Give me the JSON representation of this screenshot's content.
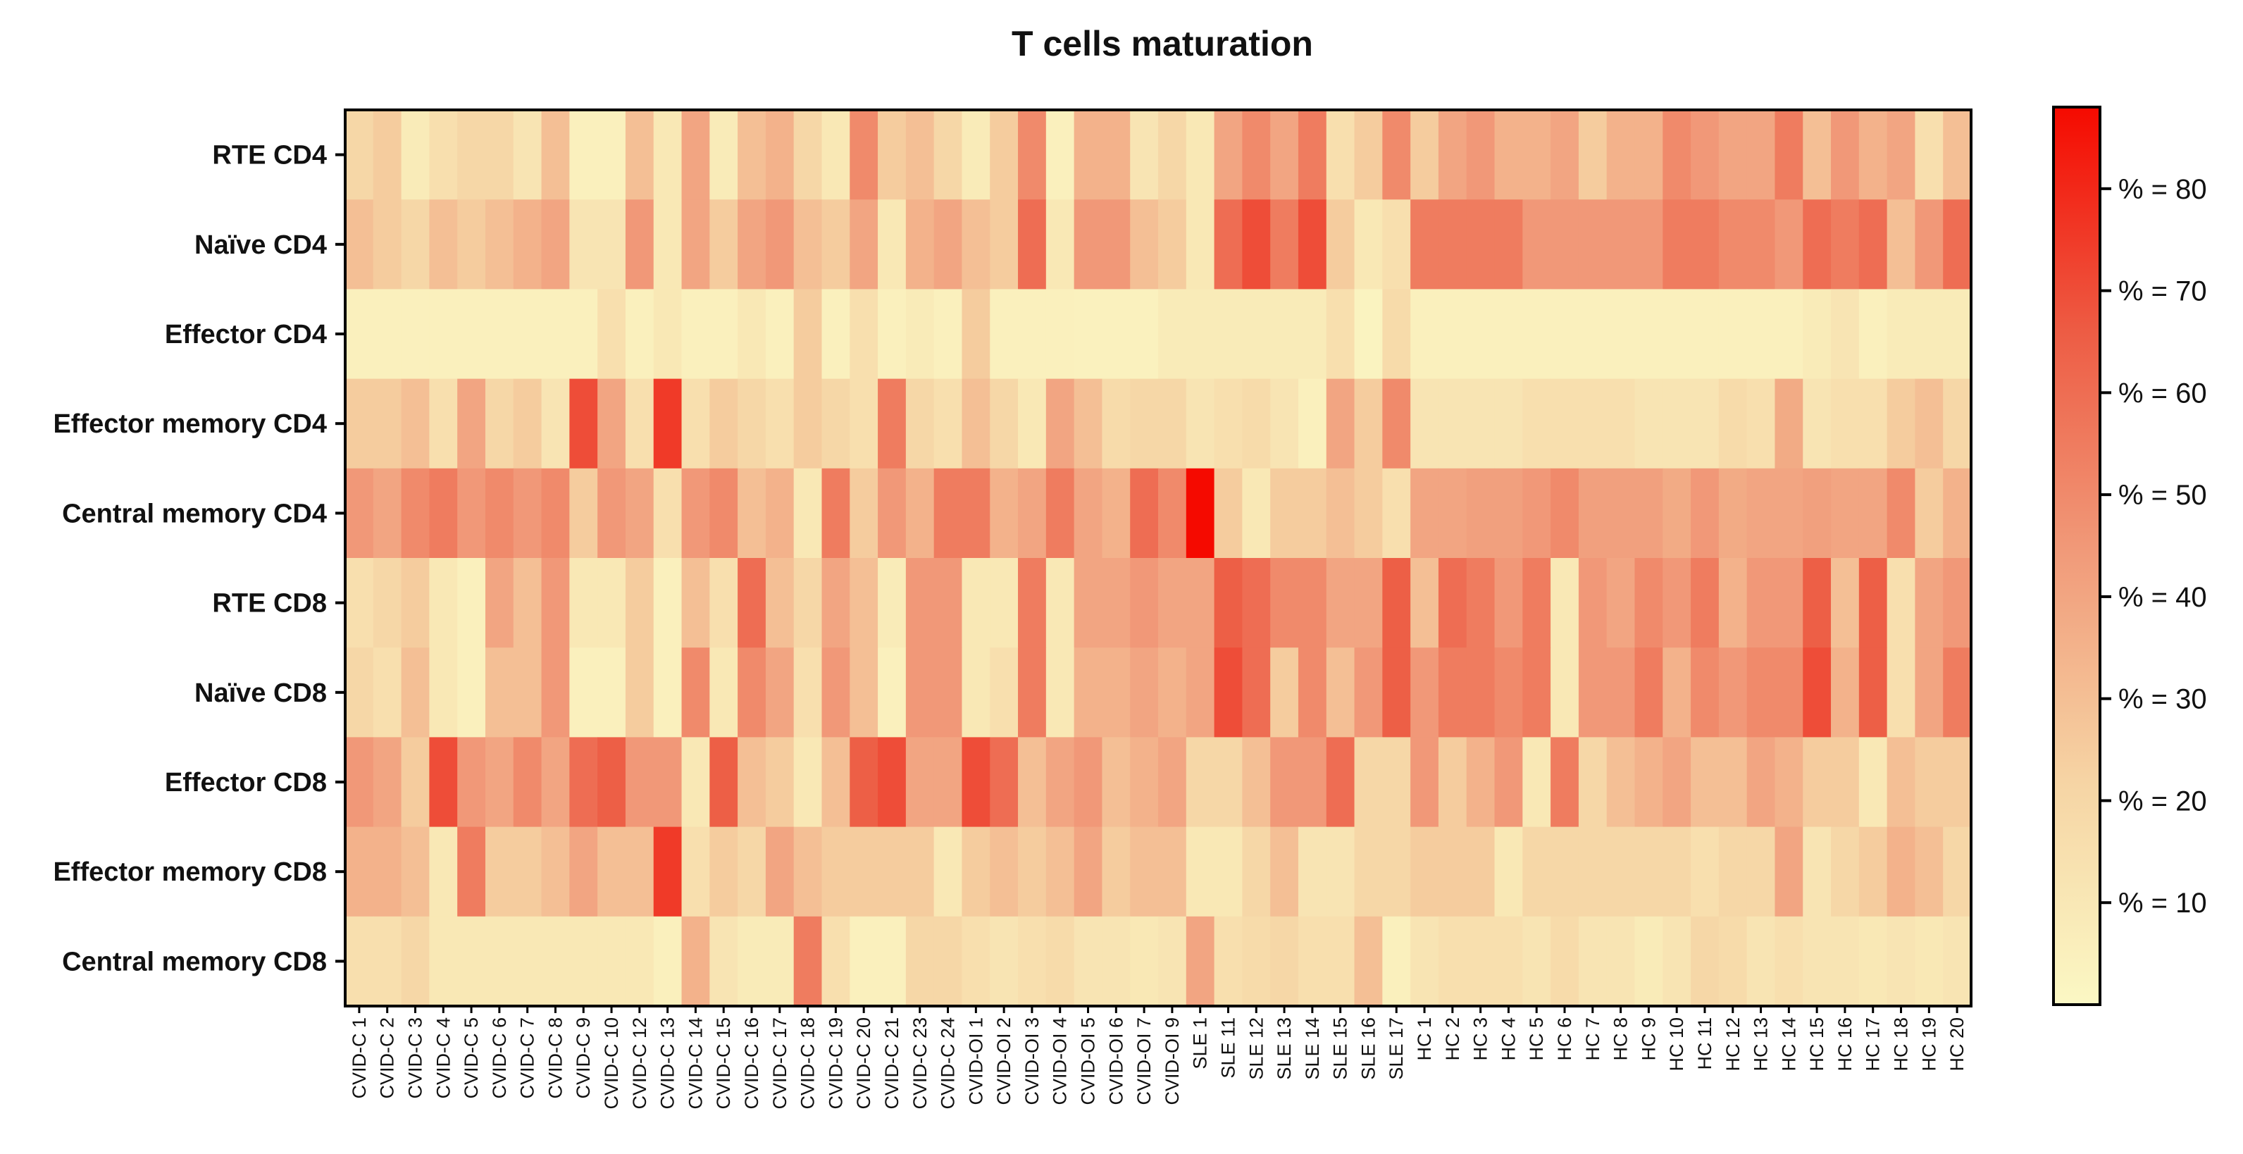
{
  "chart_data": {
    "type": "heatmap",
    "title": "T cells maturation",
    "rows": [
      "RTE CD4",
      "Naïve CD4",
      "Effector CD4",
      "Effector memory CD4",
      "Central memory CD4",
      "RTE CD8",
      "Naïve CD8",
      "Effector CD8",
      "Effector memory CD8",
      "Central memory CD8"
    ],
    "columns": [
      "CVID-C 1",
      "CVID-C 2",
      "CVID-C 3",
      "CVID-C 4",
      "CVID-C 5",
      "CVID-C 6",
      "CVID-C 7",
      "CVID-C 8",
      "CVID-C 9",
      "CVID-C 10",
      "CVID-C 12",
      "CVID-C 13",
      "CVID-C 14",
      "CVID-C 15",
      "CVID-C 16",
      "CVID-C 17",
      "CVID-C 18",
      "CVID-C 19",
      "CVID-C 20",
      "CVID-C 21",
      "CVID-C 23",
      "CVID-C 24",
      "CVID-OI 1",
      "CVID-OI 2",
      "CVID-OI 3",
      "CVID-OI 4",
      "CVID-OI 5",
      "CVID-OI 6",
      "CVID-OI 7",
      "CVID-OI 9",
      "SLE 1",
      "SLE 11",
      "SLE 12",
      "SLE 13",
      "SLE 14",
      "SLE 15",
      "SLE 16",
      "SLE 17",
      "HC 1",
      "HC 2",
      "HC 3",
      "HC 4",
      "HC 5",
      "HC 6",
      "HC 7",
      "HC 8",
      "HC 9",
      "HC 10",
      "HC 11",
      "HC 12",
      "HC 13",
      "HC 14",
      "HC 15",
      "HC 16",
      "HC 17",
      "HC 18",
      "HC 19",
      "HC 20"
    ],
    "values": [
      [
        20,
        25,
        8,
        15,
        20,
        20,
        12,
        30,
        5,
        5,
        30,
        10,
        40,
        8,
        30,
        35,
        20,
        10,
        50,
        25,
        30,
        20,
        8,
        25,
        50,
        5,
        35,
        35,
        12,
        20,
        10,
        40,
        50,
        40,
        55,
        15,
        25,
        50,
        25,
        40,
        45,
        35,
        35,
        40,
        25,
        35,
        35,
        50,
        45,
        40,
        40,
        55,
        30,
        45,
        35,
        40,
        15,
        30
      ],
      [
        30,
        25,
        20,
        30,
        25,
        30,
        35,
        40,
        12,
        12,
        45,
        10,
        40,
        25,
        40,
        45,
        30,
        25,
        40,
        10,
        35,
        40,
        30,
        25,
        60,
        10,
        45,
        45,
        30,
        25,
        10,
        60,
        70,
        55,
        70,
        25,
        10,
        15,
        55,
        55,
        55,
        55,
        45,
        45,
        45,
        45,
        45,
        55,
        55,
        50,
        50,
        45,
        60,
        55,
        60,
        30,
        45,
        60
      ],
      [
        5,
        5,
        5,
        5,
        5,
        5,
        5,
        5,
        5,
        15,
        5,
        10,
        5,
        5,
        10,
        5,
        25,
        5,
        15,
        5,
        8,
        5,
        25,
        5,
        5,
        5,
        4,
        4,
        4,
        8,
        8,
        8,
        8,
        8,
        8,
        15,
        3,
        18,
        5,
        5,
        5,
        5,
        5,
        5,
        5,
        5,
        5,
        5,
        5,
        5,
        5,
        5,
        8,
        12,
        5,
        8,
        8,
        8
      ],
      [
        25,
        25,
        30,
        15,
        40,
        20,
        25,
        12,
        70,
        40,
        15,
        75,
        15,
        25,
        20,
        15,
        25,
        20,
        15,
        55,
        20,
        15,
        30,
        20,
        10,
        40,
        30,
        18,
        20,
        20,
        12,
        15,
        18,
        12,
        5,
        40,
        25,
        50,
        12,
        12,
        12,
        12,
        15,
        15,
        15,
        15,
        12,
        12,
        12,
        18,
        15,
        38,
        12,
        15,
        15,
        25,
        30,
        20
      ],
      [
        45,
        40,
        50,
        55,
        45,
        50,
        45,
        50,
        25,
        45,
        40,
        15,
        45,
        50,
        30,
        35,
        10,
        55,
        25,
        45,
        35,
        55,
        55,
        35,
        40,
        55,
        40,
        35,
        60,
        50,
        90,
        25,
        10,
        25,
        25,
        30,
        25,
        15,
        40,
        40,
        42,
        42,
        45,
        50,
        42,
        42,
        42,
        38,
        45,
        38,
        40,
        40,
        42,
        40,
        40,
        50,
        25,
        35
      ],
      [
        15,
        20,
        25,
        10,
        5,
        40,
        30,
        45,
        10,
        10,
        25,
        5,
        30,
        15,
        60,
        30,
        20,
        40,
        30,
        8,
        45,
        45,
        10,
        10,
        55,
        10,
        40,
        40,
        45,
        40,
        40,
        65,
        60,
        50,
        50,
        40,
        40,
        65,
        30,
        60,
        55,
        45,
        55,
        10,
        45,
        40,
        50,
        45,
        55,
        35,
        45,
        45,
        65,
        30,
        65,
        15,
        40,
        45
      ],
      [
        20,
        15,
        30,
        10,
        5,
        30,
        30,
        45,
        5,
        5,
        25,
        5,
        50,
        10,
        50,
        40,
        15,
        45,
        30,
        5,
        45,
        45,
        10,
        15,
        55,
        10,
        35,
        35,
        40,
        35,
        40,
        70,
        60,
        25,
        50,
        30,
        45,
        65,
        45,
        55,
        55,
        50,
        55,
        10,
        45,
        45,
        55,
        35,
        50,
        45,
        50,
        50,
        70,
        35,
        65,
        15,
        40,
        55
      ],
      [
        45,
        40,
        25,
        70,
        45,
        40,
        50,
        40,
        60,
        65,
        45,
        45,
        10,
        65,
        30,
        25,
        10,
        30,
        65,
        70,
        40,
        40,
        70,
        60,
        30,
        40,
        45,
        30,
        35,
        40,
        20,
        20,
        30,
        45,
        45,
        60,
        20,
        20,
        45,
        25,
        35,
        45,
        10,
        55,
        20,
        30,
        35,
        40,
        30,
        30,
        40,
        35,
        25,
        25,
        10,
        30,
        25,
        25
      ],
      [
        35,
        35,
        30,
        10,
        55,
        25,
        25,
        30,
        40,
        30,
        30,
        75,
        15,
        25,
        20,
        40,
        30,
        25,
        25,
        25,
        25,
        10,
        25,
        30,
        25,
        30,
        40,
        25,
        30,
        30,
        10,
        10,
        20,
        30,
        12,
        12,
        20,
        20,
        25,
        25,
        25,
        10,
        20,
        20,
        20,
        20,
        20,
        20,
        15,
        20,
        20,
        40,
        12,
        20,
        25,
        35,
        30,
        20
      ],
      [
        15,
        15,
        20,
        10,
        10,
        10,
        10,
        10,
        10,
        10,
        10,
        5,
        35,
        12,
        8,
        8,
        55,
        15,
        5,
        5,
        20,
        20,
        15,
        12,
        15,
        18,
        12,
        12,
        10,
        12,
        40,
        15,
        18,
        20,
        15,
        15,
        30,
        5,
        12,
        15,
        15,
        15,
        12,
        18,
        12,
        12,
        8,
        12,
        20,
        18,
        12,
        15,
        12,
        12,
        10,
        12,
        10,
        12
      ]
    ],
    "colorbar": {
      "min": 0,
      "max": 88,
      "ticks": [
        10,
        20,
        30,
        40,
        50,
        60,
        70,
        80
      ],
      "tick_labels": [
        "% = 10",
        "% = 20",
        "% = 30",
        "% = 40",
        "% = 50",
        "% = 60",
        "% = 70",
        "% = 80"
      ],
      "color_low": "#fbf8c4",
      "color_high": "#f50a00"
    }
  }
}
